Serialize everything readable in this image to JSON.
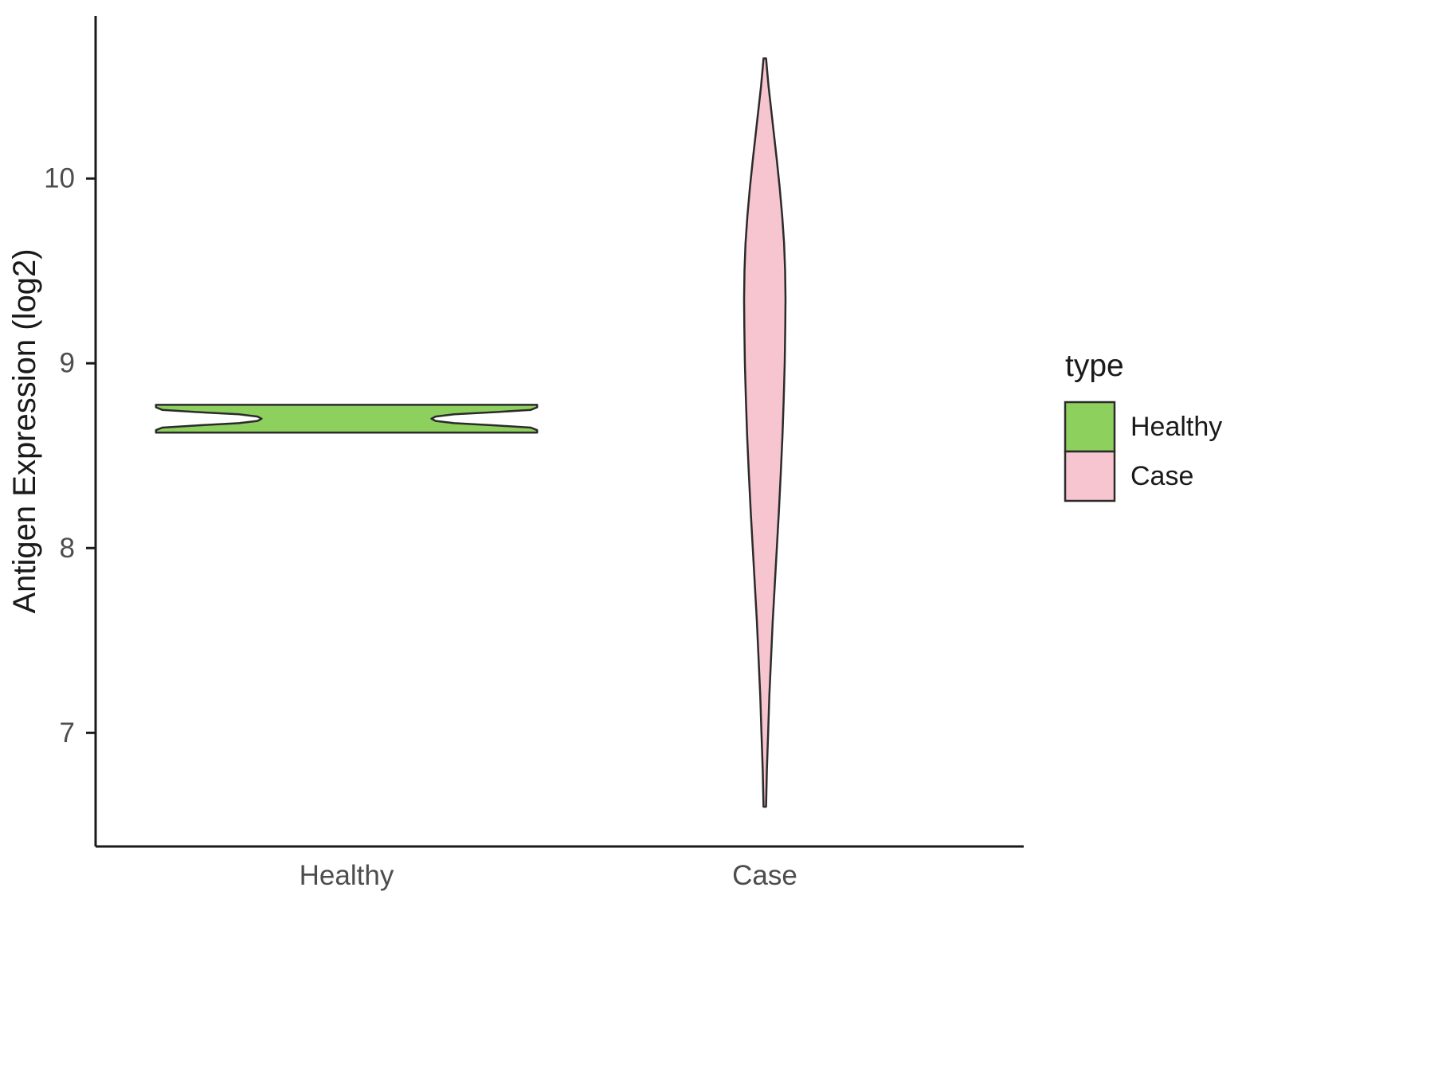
{
  "chart_data": {
    "type": "violin",
    "title": "",
    "xlabel": "",
    "ylabel": "Antigen Expression (log2)",
    "categories": [
      "Healthy",
      "Case"
    ],
    "y_ticks": [
      7,
      8,
      9,
      10
    ],
    "ylim_displayed": [
      6.4,
      10.9
    ],
    "grid": false,
    "legend": {
      "title": "type",
      "position": "right",
      "entries": [
        {
          "label": "Healthy",
          "color": "#8ed05e"
        },
        {
          "label": "Case",
          "color": "#f7c5d0"
        }
      ]
    },
    "axis_color": "#1a1a1a",
    "outline_color": "#2b2b2b",
    "tick_label_color": "#4d4d4d",
    "title_color": "#1a1a1a",
    "series": [
      {
        "name": "Healthy",
        "color": "#8ed05e",
        "summary": {
          "min": 8.62,
          "max": 8.78,
          "modes": [
            8.64,
            8.76
          ],
          "shape": "flat wide bimodal violin pinched at waist"
        },
        "profile": [
          [
            8.625,
            0.92
          ],
          [
            8.638,
            0.92
          ],
          [
            8.652,
            0.89
          ],
          [
            8.664,
            0.72
          ],
          [
            8.676,
            0.52
          ],
          [
            8.688,
            0.43
          ],
          [
            8.7,
            0.41
          ],
          [
            8.712,
            0.43
          ],
          [
            8.724,
            0.52
          ],
          [
            8.736,
            0.72
          ],
          [
            8.748,
            0.89
          ],
          [
            8.762,
            0.92
          ],
          [
            8.775,
            0.92
          ]
        ]
      },
      {
        "name": "Case",
        "color": "#f7c5d0",
        "summary": {
          "min": 6.6,
          "max": 10.65,
          "mode": 9.35,
          "shape": "tall narrow unimodal violin, widest near 9.3"
        },
        "profile": [
          [
            6.6,
            0.006
          ],
          [
            6.8,
            0.01
          ],
          [
            7.0,
            0.016
          ],
          [
            7.2,
            0.022
          ],
          [
            7.4,
            0.03
          ],
          [
            7.6,
            0.038
          ],
          [
            7.8,
            0.048
          ],
          [
            8.0,
            0.058
          ],
          [
            8.2,
            0.068
          ],
          [
            8.4,
            0.077
          ],
          [
            8.6,
            0.085
          ],
          [
            8.8,
            0.091
          ],
          [
            9.0,
            0.096
          ],
          [
            9.2,
            0.099
          ],
          [
            9.35,
            0.1
          ],
          [
            9.5,
            0.098
          ],
          [
            9.65,
            0.093
          ],
          [
            9.8,
            0.084
          ],
          [
            9.95,
            0.072
          ],
          [
            10.1,
            0.058
          ],
          [
            10.25,
            0.043
          ],
          [
            10.4,
            0.028
          ],
          [
            10.5,
            0.018
          ],
          [
            10.6,
            0.01
          ],
          [
            10.65,
            0.006
          ]
        ]
      }
    ]
  }
}
